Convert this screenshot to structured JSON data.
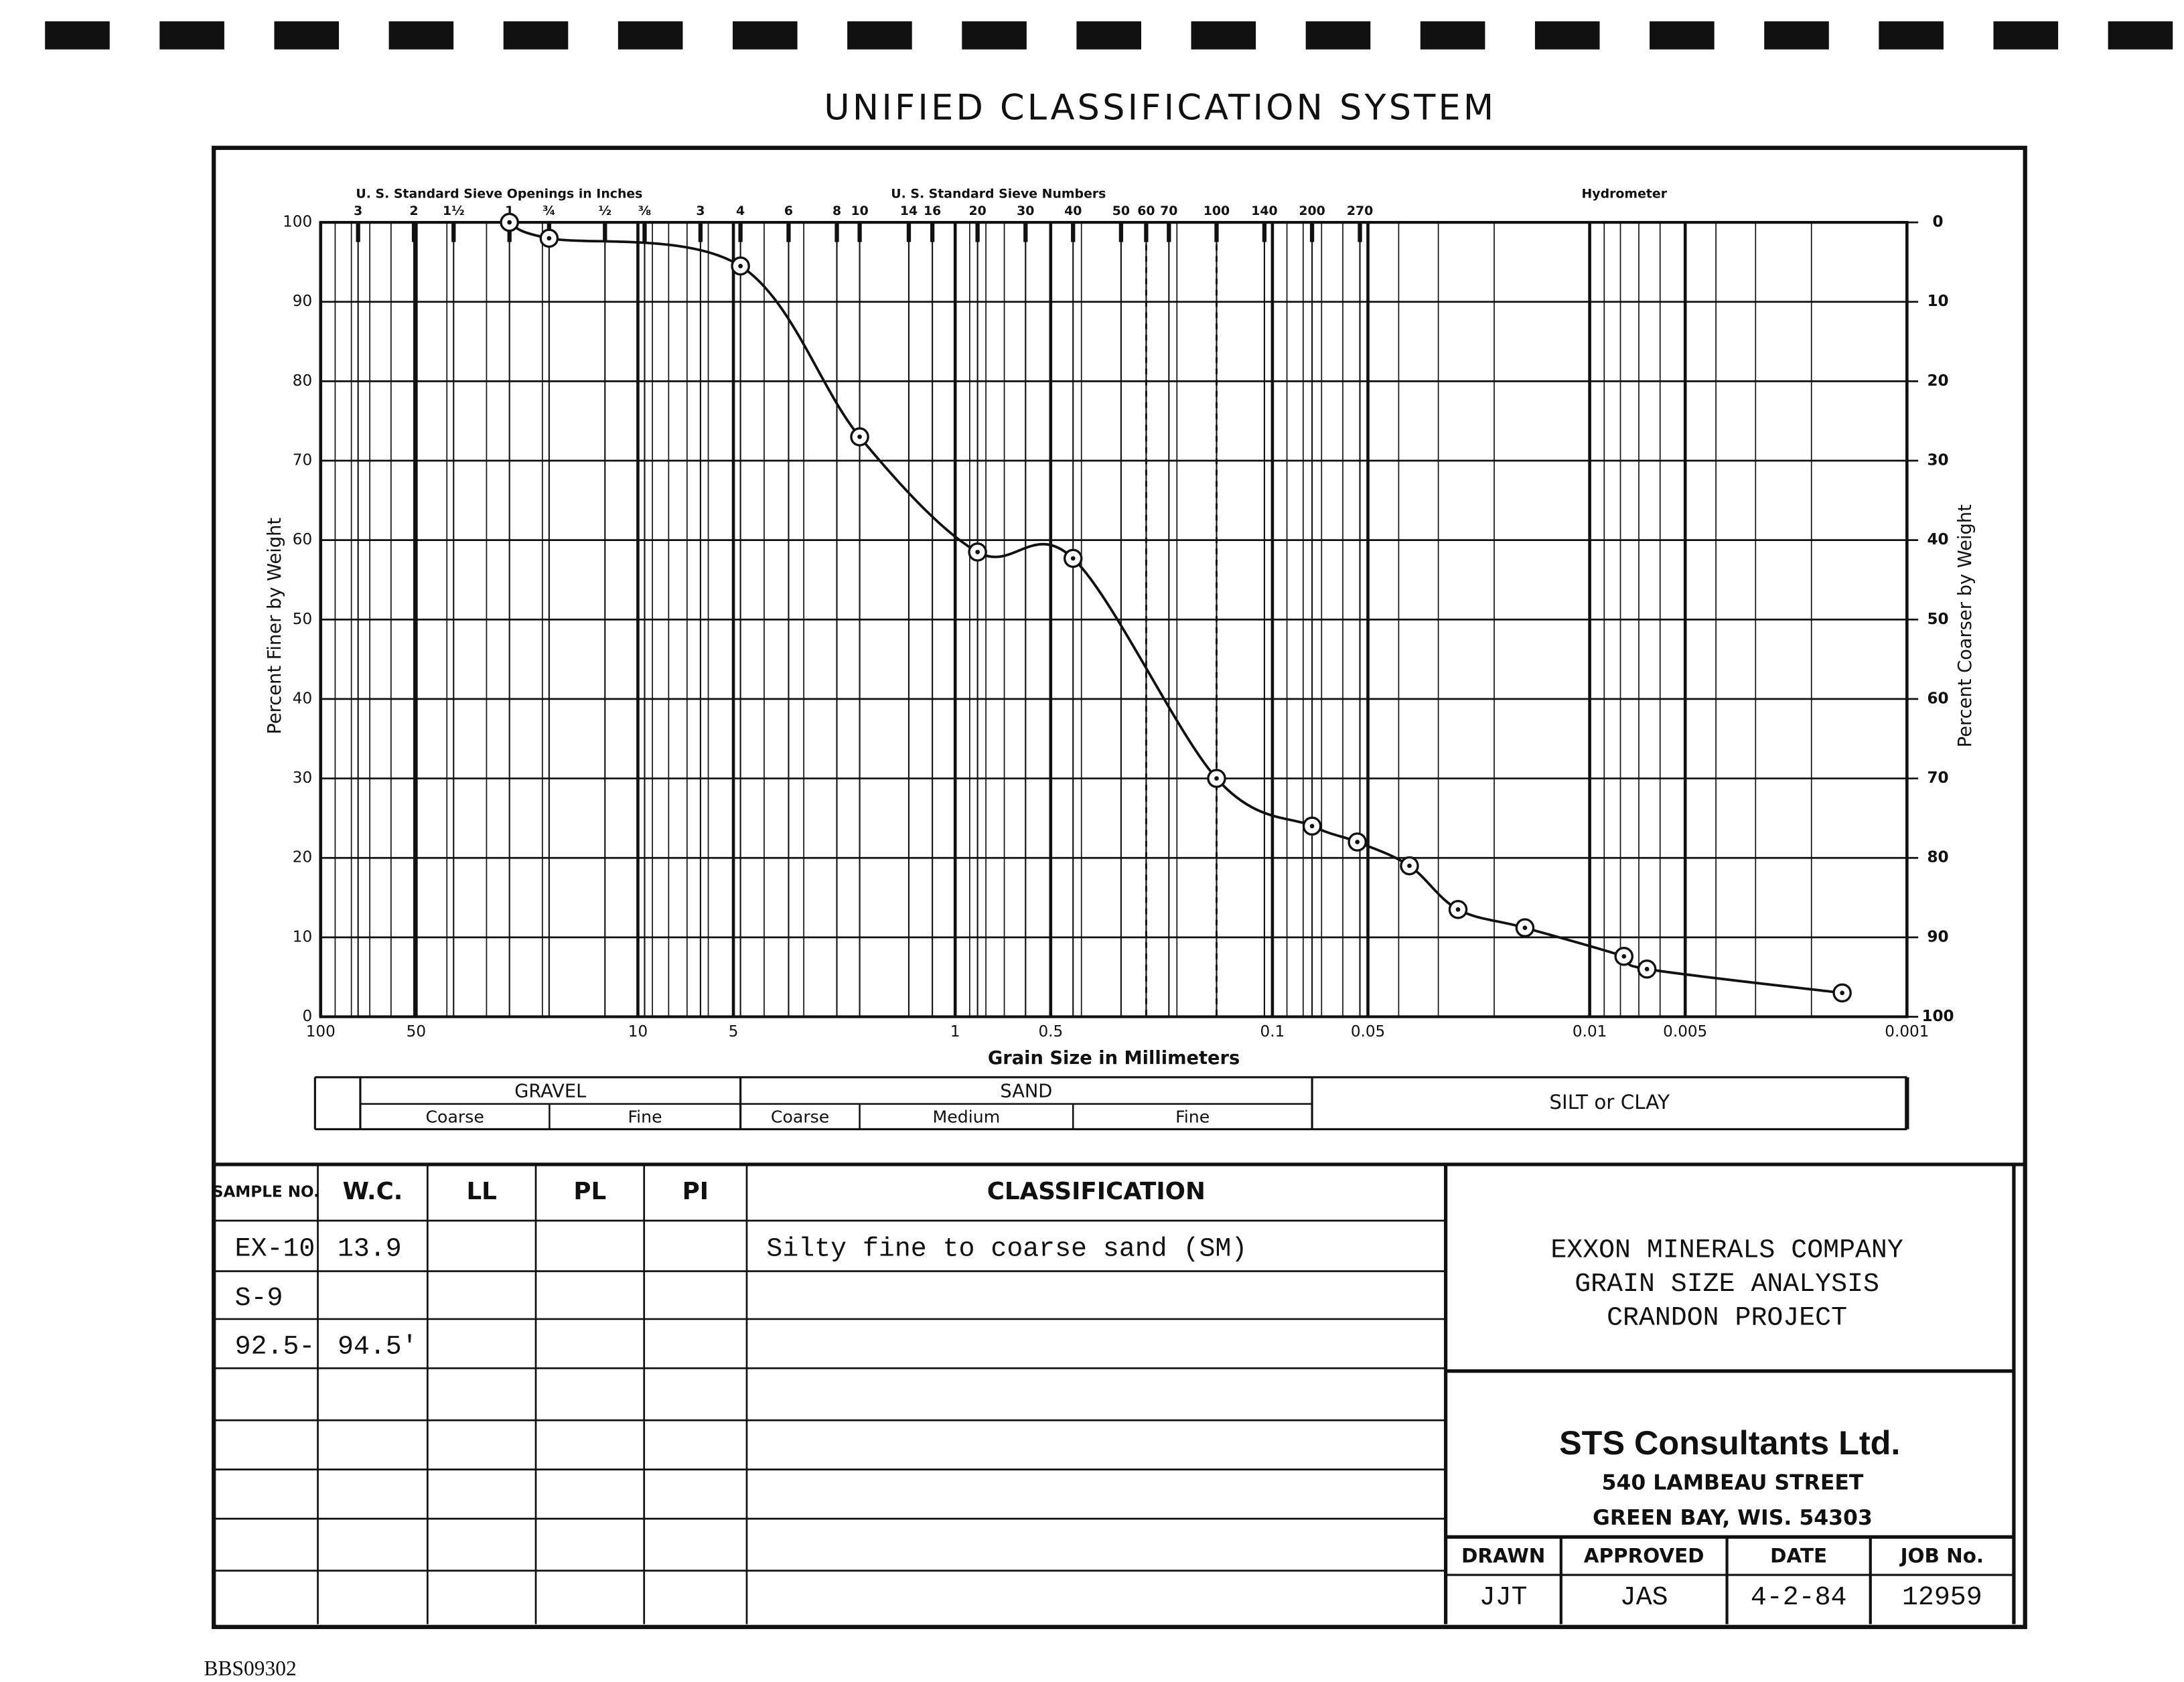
{
  "header": {
    "title": "UNIFIED CLASSIFICATION SYSTEM"
  },
  "chart_data": {
    "type": "line",
    "top_labels": [
      "U. S. Standard Sieve Openings in Inches",
      "U. S. Standard Sieve Numbers",
      "Hydrometer"
    ],
    "x_label": "Grain Size in Millimeters",
    "y_label": "Percent Finer by Weight",
    "y2_label": "Percent Coarser by Weight",
    "log_x": true,
    "grid": true,
    "color": "#111111",
    "xlim": [
      100,
      0.001
    ],
    "xticks": [
      100,
      50,
      10,
      5,
      1,
      0.5,
      0.1,
      0.05,
      0.01,
      0.005,
      0.001
    ],
    "ylim": [
      0,
      100
    ],
    "yticks": [
      0,
      10,
      20,
      30,
      40,
      50,
      60,
      70,
      80,
      90,
      100
    ],
    "y2lim": [
      100,
      0
    ],
    "y2ticks": [
      0,
      10,
      20,
      30,
      40,
      50,
      60,
      70,
      80,
      90,
      100
    ],
    "inch_ticks": [
      {
        "value": 76.2,
        "label": "3"
      },
      {
        "value": 50.8,
        "label": "2"
      },
      {
        "value": 38.1,
        "label": "1½"
      },
      {
        "value": 25.4,
        "label": "1"
      },
      {
        "value": 19.05,
        "label": "¾"
      },
      {
        "value": 12.7,
        "label": "½"
      },
      {
        "value": 9.525,
        "label": "⅜"
      }
    ],
    "sieve_ticks": [
      {
        "value": 6.35,
        "label": "3"
      },
      {
        "value": 4.75,
        "label": "4"
      },
      {
        "value": 3.35,
        "label": "6"
      },
      {
        "value": 2.36,
        "label": "8"
      },
      {
        "value": 2.0,
        "label": "10"
      },
      {
        "value": 1.4,
        "label": "14"
      },
      {
        "value": 1.18,
        "label": "16"
      },
      {
        "value": 0.85,
        "label": "20"
      },
      {
        "value": 0.6,
        "label": "30"
      },
      {
        "value": 0.425,
        "label": "40"
      },
      {
        "value": 0.3,
        "label": "50"
      },
      {
        "value": 0.25,
        "label": "60"
      },
      {
        "value": 0.212,
        "label": "70"
      },
      {
        "value": 0.15,
        "label": "100"
      },
      {
        "value": 0.106,
        "label": "140"
      },
      {
        "value": 0.075,
        "label": "200"
      },
      {
        "value": 0.053,
        "label": "270"
      }
    ],
    "reference_lines_x": [
      0.25,
      0.15
    ],
    "x": [
      25.4,
      19.05,
      4.75,
      2.0,
      0.85,
      0.425,
      0.15,
      0.075,
      0.054,
      0.037,
      0.026,
      0.016,
      0.0078,
      0.0066,
      0.0016
    ],
    "values": [
      100,
      98,
      94.5,
      73,
      58.5,
      57.7,
      30,
      24,
      22,
      19,
      13.5,
      11.2,
      7.6,
      6,
      3
    ],
    "soil_groups": [
      {
        "label": "GRAVEL",
        "range": [
          75,
          4.75
        ],
        "parts": [
          {
            "label": "Coarse",
            "range": [
              75,
              19
            ]
          },
          {
            "label": "Fine",
            "range": [
              19,
              4.75
            ]
          }
        ]
      },
      {
        "label": "SAND",
        "range": [
          4.75,
          0.075
        ],
        "parts": [
          {
            "label": "Coarse",
            "range": [
              4.75,
              2
            ]
          },
          {
            "label": "Medium",
            "range": [
              2,
              0.425
            ]
          },
          {
            "label": "Fine",
            "range": [
              0.425,
              0.075
            ]
          }
        ]
      },
      {
        "label": "SILT or CLAY",
        "range": [
          0.075,
          0.001
        ]
      }
    ]
  },
  "table": {
    "headers": [
      "SAMPLE NO.",
      "W.C.",
      "LL",
      "PL",
      "PI",
      "CLASSIFICATION"
    ],
    "rows": [
      [
        "EX-10",
        "13.9",
        null,
        null,
        null,
        "Silty fine to coarse sand (SM)"
      ],
      [
        "S-9"
      ],
      [
        "92.5-",
        "94.5'"
      ]
    ]
  },
  "project": {
    "lines": [
      "EXXON MINERALS COMPANY",
      "GRAIN SIZE ANALYSIS",
      "CRANDON PROJECT"
    ]
  },
  "firm": {
    "name": "STS Consultants Ltd.",
    "address": [
      "540 LAMBEAU STREET",
      "GREEN BAY, WIS. 54303"
    ]
  },
  "signoff": {
    "headers": [
      "DRAWN",
      "APPROVED",
      "DATE",
      "JOB No."
    ],
    "values": [
      "JJT",
      "JAS",
      "4-2-84",
      "12959"
    ]
  },
  "footer": {
    "code": "BBS09302"
  }
}
